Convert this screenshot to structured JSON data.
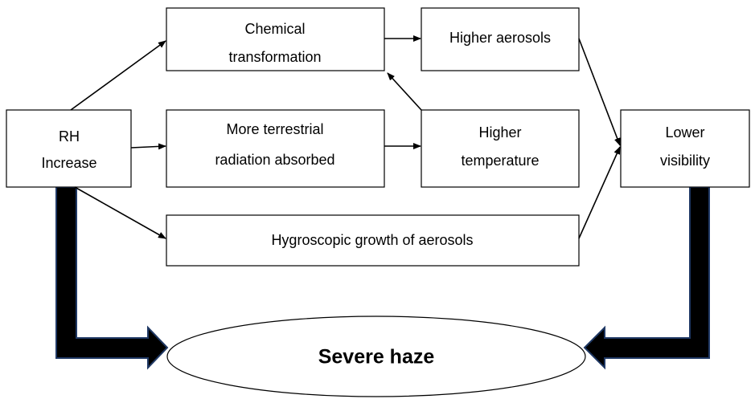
{
  "nodes": [
    {
      "id": "rh",
      "lines": [
        "RH",
        "Increase"
      ]
    },
    {
      "id": "chem",
      "lines": [
        "Chemical",
        "transformation"
      ]
    },
    {
      "id": "aerosols",
      "lines": [
        "Higher aerosols"
      ]
    },
    {
      "id": "radiation",
      "lines": [
        "More terrestrial",
        "radiation absorbed"
      ]
    },
    {
      "id": "temperature",
      "lines": [
        "Higher",
        "temperature"
      ]
    },
    {
      "id": "visibility",
      "lines": [
        "Lower",
        "visibility"
      ]
    },
    {
      "id": "hygroscopic",
      "lines": [
        "Hygroscopic growth of aerosols"
      ]
    },
    {
      "id": "haze",
      "lines": [
        "Severe haze"
      ]
    }
  ]
}
